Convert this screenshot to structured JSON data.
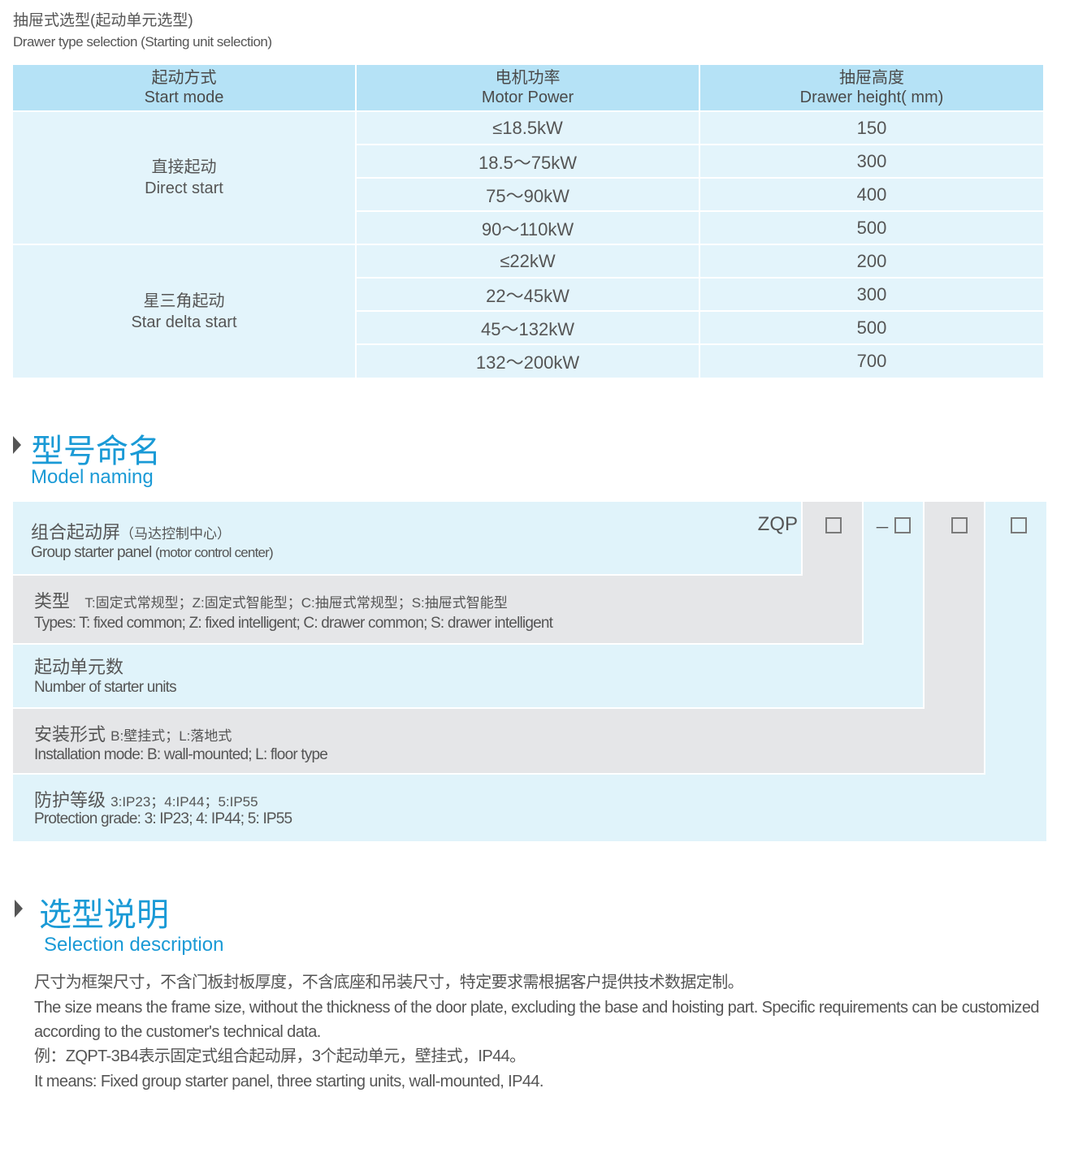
{
  "header": {
    "title_cn": "抽屉式选型(起动单元选型)",
    "title_en": "Drawer type selection (Starting unit selection)"
  },
  "table": {
    "columns": [
      {
        "cn": "起动方式",
        "en": "Start mode"
      },
      {
        "cn": "电机功率",
        "en": "Motor Power"
      },
      {
        "cn": "抽屉高度",
        "en": "Drawer height( mm)"
      }
    ],
    "groups": [
      {
        "cn": "直接起动",
        "en": "Direct start",
        "rows": [
          [
            "≤18.5kW",
            "150"
          ],
          [
            "18.5～75kW",
            "300"
          ],
          [
            "75～90kW",
            "400"
          ],
          [
            "90～110kW",
            "500"
          ]
        ]
      },
      {
        "cn": "星三角起动",
        "en": "Star delta start",
        "rows": [
          [
            "≤22kW",
            "200"
          ],
          [
            "22～45kW",
            "300"
          ],
          [
            "45～132kW",
            "500"
          ],
          [
            "132～200kW",
            "700"
          ]
        ]
      }
    ]
  },
  "model_naming": {
    "title_cn": "型号命名",
    "title_en": "Model naming",
    "prefix": "ZQP",
    "dash": "－",
    "rows": [
      {
        "cn": "组合起动屏",
        "cn_note": "（马达控制中心）",
        "en": "Group starter panel",
        "en_note": "(motor control center)"
      },
      {
        "cn": "类型",
        "cn_note": "T:固定式常规型；Z:固定式智能型；C:抽屉式常规型；S:抽屉式智能型",
        "en": "Types: T: fixed common; Z: fixed intelligent; C: drawer common; S: drawer intelligent"
      },
      {
        "cn": "起动单元数",
        "en": "Number  of  starter units"
      },
      {
        "cn": "安装形式",
        "cn_note": "B:壁挂式；L:落地式",
        "en": "Installation mode: B: wall-mounted; L: floor type"
      },
      {
        "cn": "防护等级",
        "cn_note": "3:IP23；4:IP44；5:IP55",
        "en": "Protection grade:  3: IP23; 4: IP44; 5: IP55"
      }
    ]
  },
  "selection": {
    "title_cn": "选型说明",
    "title_en": "Selection description",
    "lines": [
      "尺寸为框架尺寸，不含门板封板厚度，不含底座和吊装尺寸，特定要求需根据客户提供技术数据定制。",
      "The size means the frame size, without the thickness of the door plate, excluding the base and hoisting part. Specific requirements can be customized according to the customer's technical data.",
      "例：ZQPT-3B4表示固定式组合起动屏，3个起动单元，壁挂式，IP44。",
      "It means: Fixed group starter panel, three starting units, wall-mounted, IP44."
    ]
  },
  "colors": {
    "accent": "#1a9ad6",
    "header_bg": "#b5e2f6",
    "cell_bg": "#e3f4fb",
    "gray": "#e5e6e8"
  }
}
